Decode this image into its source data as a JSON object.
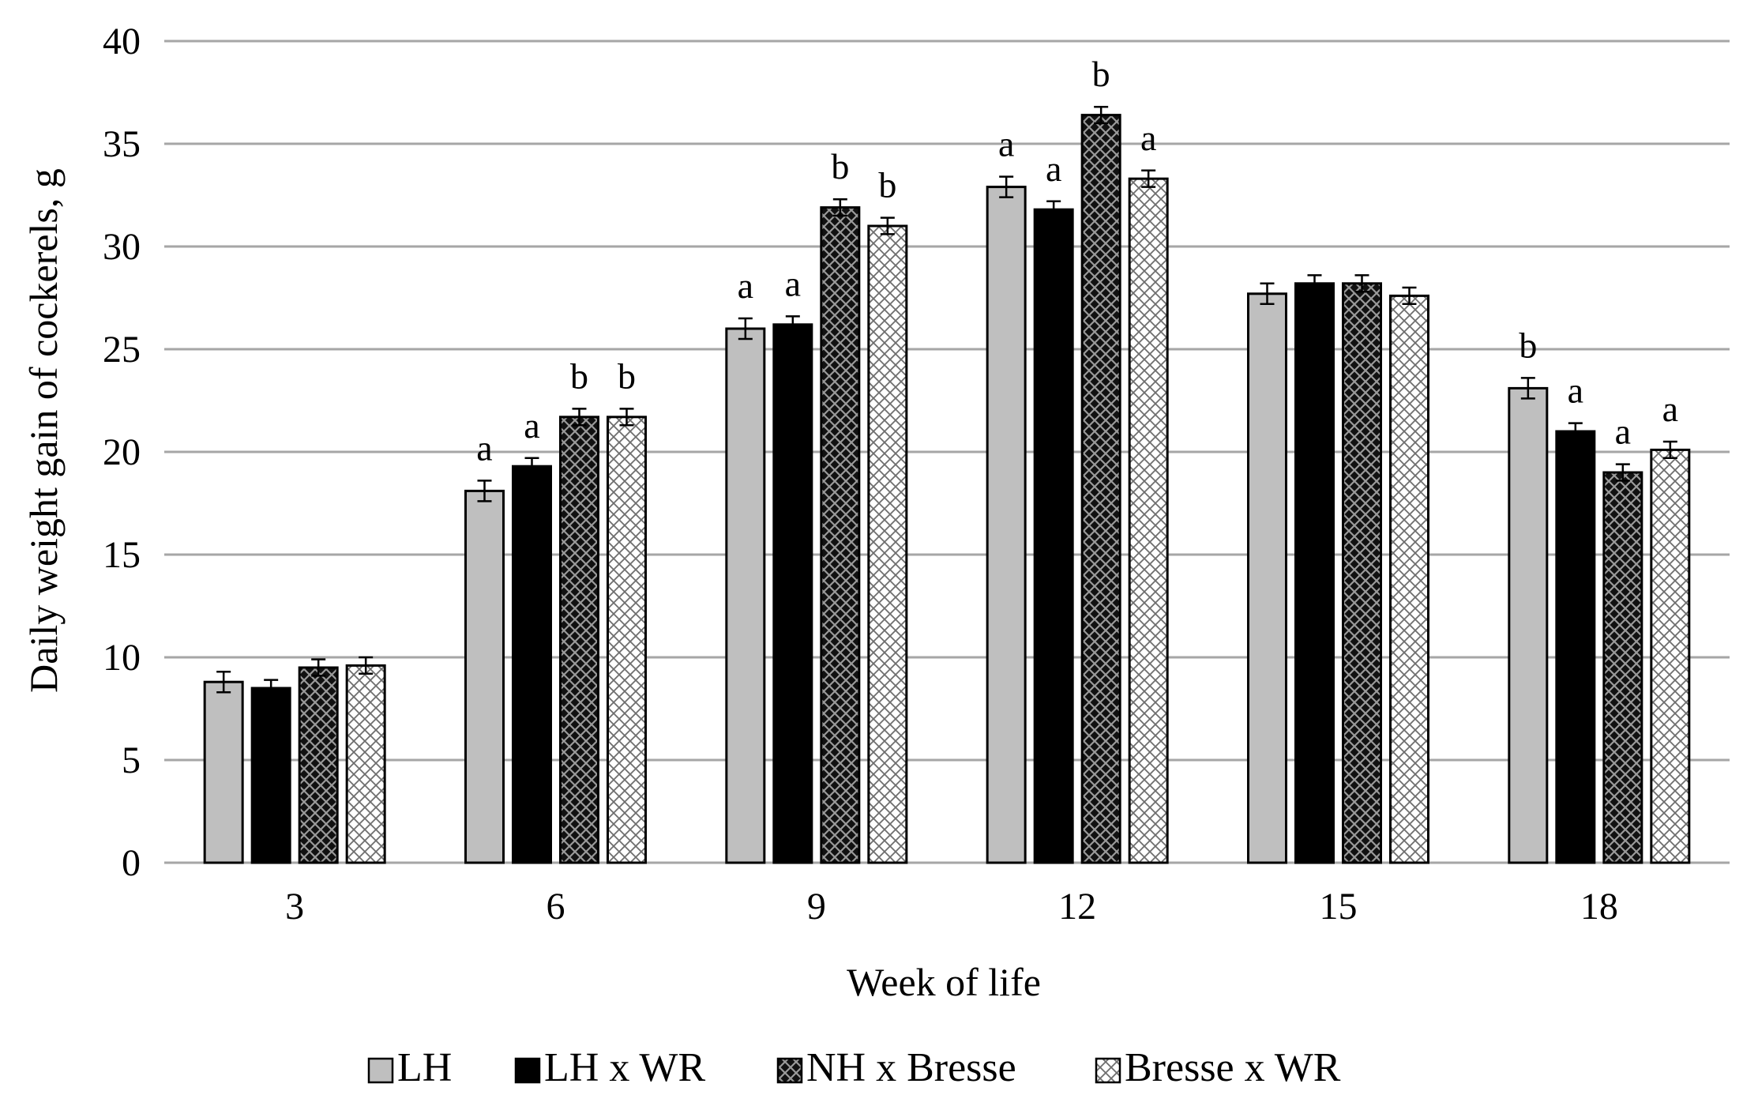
{
  "chart_data": {
    "type": "bar",
    "title": "",
    "xlabel": "Week of life",
    "ylabel": "Daily weight  gain of cockerels, g",
    "ylim": [
      0,
      40
    ],
    "yticks": [
      0,
      5,
      10,
      15,
      20,
      25,
      30,
      35,
      40
    ],
    "grid": true,
    "legend_position": "bottom",
    "categories": [
      "3",
      "6",
      "9",
      "12",
      "15",
      "18"
    ],
    "series": [
      {
        "name": "LH",
        "pattern": "solid-gray",
        "color": "#bfbfbf",
        "values": [
          8.8,
          18.1,
          26.0,
          32.9,
          27.7,
          23.1
        ],
        "errors": [
          0.5,
          0.5,
          0.5,
          0.5,
          0.5,
          0.5
        ],
        "labels": [
          "",
          "a",
          "a",
          "a",
          "",
          "b"
        ]
      },
      {
        "name": "LH x WR",
        "pattern": "solid-black",
        "color": "#000000",
        "values": [
          8.5,
          19.3,
          26.2,
          31.8,
          28.2,
          21.0
        ],
        "errors": [
          0.4,
          0.4,
          0.4,
          0.4,
          0.4,
          0.4
        ],
        "labels": [
          "",
          "a",
          "a",
          "a",
          "",
          "a"
        ]
      },
      {
        "name": "NH x Bresse",
        "pattern": "dark-lattice",
        "color": "#1a1a1a",
        "values": [
          9.5,
          21.7,
          31.9,
          36.4,
          28.2,
          19.0
        ],
        "errors": [
          0.4,
          0.4,
          0.4,
          0.4,
          0.4,
          0.4
        ],
        "labels": [
          "",
          "b",
          "b",
          "b",
          "",
          "a"
        ]
      },
      {
        "name": "Bresse x WR",
        "pattern": "light-lattice",
        "color": "#ffffff",
        "values": [
          9.6,
          21.7,
          31.0,
          33.3,
          27.6,
          20.1
        ],
        "errors": [
          0.4,
          0.4,
          0.4,
          0.4,
          0.4,
          0.4
        ],
        "labels": [
          "",
          "b",
          "b",
          "a",
          "",
          "a"
        ]
      }
    ]
  }
}
